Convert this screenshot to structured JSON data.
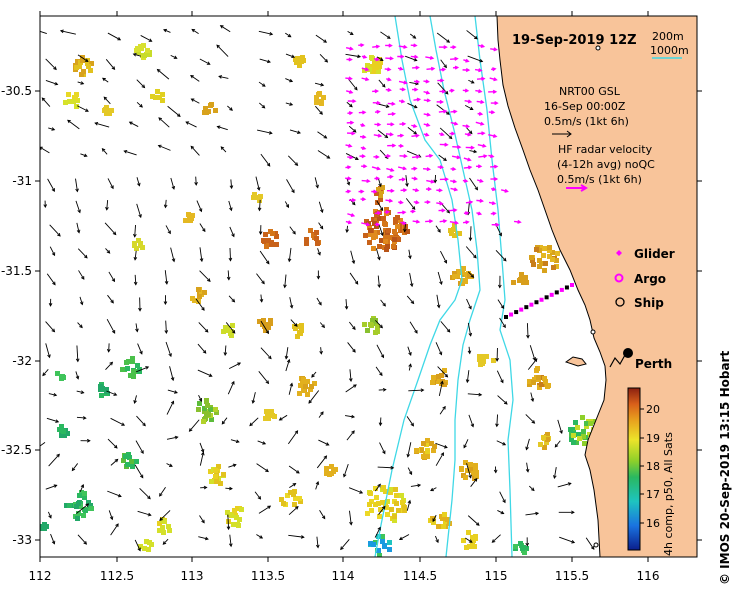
{
  "title": "19-Sep-2019 12Z",
  "isobath_shallow": "200m",
  "isobath_deep": "1000m",
  "nrt_label": "NRT00 GSL",
  "nrt_date": "16-Sep 00:00Z",
  "nrt_scale": "0.5m/s (1kt 6h)",
  "hf_label": "HF radar velocity",
  "hf_avg": "(4-12h avg) noQC",
  "hf_scale": "0.5m/s (1kt 6h)",
  "legend": {
    "glider": "Glider",
    "argo": "Argo",
    "ship": "Ship"
  },
  "city": "Perth",
  "colorbar": {
    "label": "4h comp, p50, All Sats",
    "ticks": [
      "20",
      "19",
      "18",
      "17",
      "16"
    ]
  },
  "credit": "© IMOS 20-Sep-2019 13:15 Hobart",
  "axes": {
    "x_ticks": [
      "112",
      "112.5",
      "113",
      "113.5",
      "114",
      "114.5",
      "115",
      "115.5",
      "116"
    ],
    "y_ticks": [
      "-30.5",
      "-31",
      "-31.5",
      "-32",
      "-32.5",
      "-33"
    ]
  },
  "colors": {
    "land": "#f8c49a",
    "isobath": "#3fd8e6",
    "hf_arrow": "#ff00ff",
    "glider": "#ff00ff",
    "track": "#000000"
  }
}
